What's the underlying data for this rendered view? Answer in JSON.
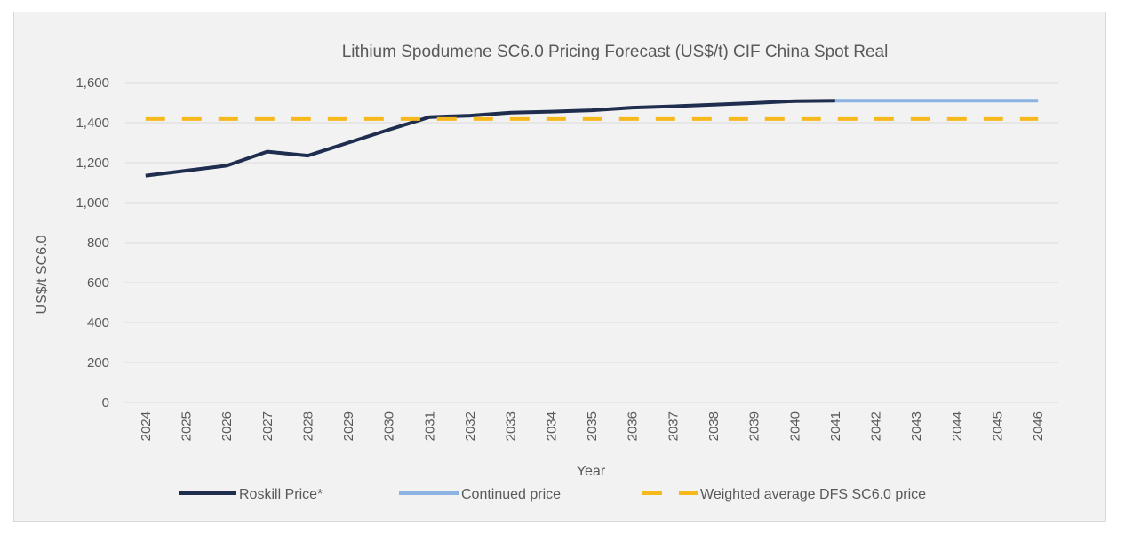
{
  "chart_data": {
    "type": "line",
    "title": "Lithium  Spodumene  SC6.0 Pricing  Forecast (US$/t)  CIF China  Spot  Real",
    "xlabel": "Year",
    "ylabel": "US$/t SC6.0",
    "ylim": [
      0,
      1600
    ],
    "yticks": [
      0,
      200,
      400,
      600,
      800,
      1000,
      1200,
      1400,
      1600
    ],
    "ytick_labels": [
      "0",
      "200",
      "400",
      "600",
      "800",
      "1,000",
      "1,200",
      "1,400",
      "1,600"
    ],
    "categories": [
      "2024",
      "2025",
      "2026",
      "2027",
      "2028",
      "2029",
      "2030",
      "2031",
      "2032",
      "2033",
      "2034",
      "2035",
      "2036",
      "2037",
      "2038",
      "2039",
      "2040",
      "2041",
      "2042",
      "2043",
      "2044",
      "2045",
      "2046"
    ],
    "grid": true,
    "legend_position": "bottom",
    "series": [
      {
        "name": "Roskill Price*",
        "color": "#1f2d4f",
        "style": "solid",
        "values": [
          1135,
          1160,
          1185,
          1255,
          1235,
          1300,
          1365,
          1428,
          1435,
          1450,
          1455,
          1462,
          1475,
          1482,
          1490,
          1498,
          1508,
          1510,
          null,
          null,
          null,
          null,
          null
        ]
      },
      {
        "name": "Continued price",
        "color": "#8db3e2",
        "style": "solid",
        "values": [
          null,
          null,
          null,
          null,
          null,
          null,
          null,
          null,
          null,
          null,
          null,
          null,
          null,
          null,
          null,
          null,
          null,
          1510,
          1510,
          1510,
          1510,
          1510,
          1510
        ]
      },
      {
        "name": "Weighted average DFS SC6.0 price",
        "color": "#f7b81c",
        "style": "dashed",
        "values": [
          1418,
          1418,
          1418,
          1418,
          1418,
          1418,
          1418,
          1418,
          1418,
          1418,
          1418,
          1418,
          1418,
          1418,
          1418,
          1418,
          1418,
          1418,
          1418,
          1418,
          1418,
          1418,
          1418
        ]
      }
    ]
  }
}
